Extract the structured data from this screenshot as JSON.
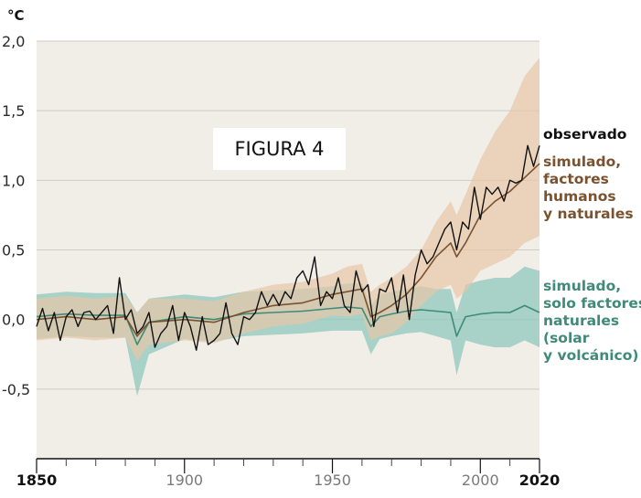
{
  "figure_label": "FIGURA 4",
  "colors": {
    "plot_background": "#f1eee8",
    "grid": "#cfcbc4",
    "observed": "#111111",
    "human_natural": "#7a5230",
    "human_natural_band": "#e7c8a7",
    "natural_only": "#3f8a79",
    "natural_only_band": "#8fc7bd"
  },
  "chart_data": {
    "type": "line",
    "unit_label": "°C",
    "xlabel": "",
    "ylabel": "",
    "xlim": [
      1850,
      2020
    ],
    "ylim": [
      -1.0,
      2.0
    ],
    "yticks": [
      {
        "value": 2.0,
        "label": "2,0"
      },
      {
        "value": 1.5,
        "label": "1,5"
      },
      {
        "value": 1.0,
        "label": "1,0"
      },
      {
        "value": 0.5,
        "label": "0,5"
      },
      {
        "value": 0.0,
        "label": "0,0"
      },
      {
        "value": -0.5,
        "label": "-0,5"
      }
    ],
    "xticks": [
      {
        "value": 1850,
        "label": "1850",
        "bold": true
      },
      {
        "value": 1900,
        "label": "1900",
        "bold": false
      },
      {
        "value": 1950,
        "label": "1950",
        "bold": false
      },
      {
        "value": 2000,
        "label": "2000",
        "bold": false
      },
      {
        "value": 2020,
        "label": "2020",
        "bold": true
      }
    ],
    "grid": true,
    "series": [
      {
        "name": "observado",
        "x": [
          1850,
          1852,
          1854,
          1856,
          1858,
          1860,
          1862,
          1864,
          1866,
          1868,
          1870,
          1872,
          1874,
          1876,
          1878,
          1880,
          1882,
          1884,
          1886,
          1888,
          1890,
          1892,
          1894,
          1896,
          1898,
          1900,
          1902,
          1904,
          1906,
          1908,
          1910,
          1912,
          1914,
          1916,
          1918,
          1920,
          1922,
          1924,
          1926,
          1928,
          1930,
          1932,
          1934,
          1936,
          1938,
          1940,
          1942,
          1944,
          1946,
          1948,
          1950,
          1952,
          1954,
          1956,
          1958,
          1960,
          1962,
          1964,
          1966,
          1968,
          1970,
          1972,
          1974,
          1976,
          1978,
          1980,
          1982,
          1984,
          1986,
          1988,
          1990,
          1992,
          1994,
          1996,
          1998,
          2000,
          2002,
          2004,
          2006,
          2008,
          2010,
          2012,
          2014,
          2016,
          2018,
          2020
        ],
        "values": [
          -0.05,
          0.08,
          -0.08,
          0.05,
          -0.15,
          0.02,
          0.07,
          -0.05,
          0.05,
          0.06,
          0.0,
          0.05,
          0.1,
          -0.1,
          0.3,
          0.0,
          0.07,
          -0.1,
          -0.05,
          0.05,
          -0.2,
          -0.1,
          -0.05,
          0.1,
          -0.15,
          0.05,
          -0.05,
          -0.22,
          0.02,
          -0.18,
          -0.15,
          -0.1,
          0.12,
          -0.1,
          -0.18,
          0.02,
          0.0,
          0.05,
          0.2,
          0.1,
          0.18,
          0.1,
          0.2,
          0.15,
          0.3,
          0.35,
          0.25,
          0.45,
          0.1,
          0.2,
          0.15,
          0.3,
          0.1,
          0.05,
          0.35,
          0.2,
          0.25,
          -0.05,
          0.22,
          0.2,
          0.3,
          0.05,
          0.32,
          0.0,
          0.32,
          0.5,
          0.4,
          0.45,
          0.55,
          0.65,
          0.7,
          0.5,
          0.7,
          0.65,
          0.95,
          0.72,
          0.95,
          0.9,
          0.95,
          0.85,
          1.0,
          0.98,
          1.0,
          1.25,
          1.1,
          1.25
        ]
      },
      {
        "name": "simulado, factores humanos y naturales",
        "x": [
          1850,
          1860,
          1870,
          1880,
          1884,
          1888,
          1900,
          1910,
          1920,
          1930,
          1940,
          1950,
          1955,
          1960,
          1963,
          1966,
          1970,
          1975,
          1980,
          1985,
          1990,
          1992,
          1995,
          2000,
          2005,
          2010,
          2015,
          2020
        ],
        "values": [
          0.0,
          0.02,
          0.0,
          0.02,
          -0.12,
          -0.02,
          0.0,
          -0.02,
          0.05,
          0.1,
          0.12,
          0.18,
          0.2,
          0.22,
          0.02,
          0.05,
          0.1,
          0.18,
          0.3,
          0.45,
          0.55,
          0.45,
          0.55,
          0.75,
          0.85,
          0.92,
          1.02,
          1.12
        ],
        "band_upper": [
          0.15,
          0.17,
          0.15,
          0.17,
          0.05,
          0.15,
          0.15,
          0.13,
          0.2,
          0.25,
          0.27,
          0.33,
          0.38,
          0.4,
          0.2,
          0.25,
          0.3,
          0.38,
          0.5,
          0.7,
          0.85,
          0.75,
          0.9,
          1.15,
          1.35,
          1.5,
          1.75,
          1.88
        ],
        "band_lower": [
          -0.15,
          -0.13,
          -0.15,
          -0.13,
          -0.3,
          -0.18,
          -0.15,
          -0.17,
          -0.1,
          -0.05,
          -0.03,
          0.03,
          0.02,
          0.04,
          -0.15,
          -0.12,
          -0.1,
          -0.02,
          0.1,
          0.2,
          0.25,
          0.15,
          0.2,
          0.35,
          0.4,
          0.45,
          0.55,
          0.6
        ]
      },
      {
        "name": "simulado, solo factores naturales (solar y volcánico)",
        "x": [
          1850,
          1860,
          1870,
          1880,
          1884,
          1888,
          1900,
          1910,
          1920,
          1930,
          1940,
          1950,
          1955,
          1960,
          1963,
          1966,
          1970,
          1975,
          1980,
          1985,
          1990,
          1992,
          1995,
          2000,
          2005,
          2010,
          2015,
          2020
        ],
        "values": [
          0.02,
          0.04,
          0.03,
          0.03,
          -0.18,
          -0.02,
          0.02,
          0.0,
          0.04,
          0.05,
          0.06,
          0.08,
          0.09,
          0.08,
          -0.05,
          0.02,
          0.04,
          0.06,
          0.07,
          0.06,
          0.05,
          -0.12,
          0.02,
          0.04,
          0.05,
          0.05,
          0.1,
          0.05
        ],
        "band_upper": [
          0.18,
          0.2,
          0.19,
          0.19,
          0.05,
          0.15,
          0.18,
          0.16,
          0.2,
          0.21,
          0.22,
          0.24,
          0.26,
          0.26,
          0.1,
          0.18,
          0.2,
          0.22,
          0.24,
          0.22,
          0.22,
          0.05,
          0.25,
          0.28,
          0.3,
          0.3,
          0.38,
          0.35
        ],
        "band_lower": [
          -0.14,
          -0.12,
          -0.13,
          -0.13,
          -0.55,
          -0.25,
          -0.14,
          -0.16,
          -0.12,
          -0.11,
          -0.1,
          -0.08,
          -0.08,
          -0.08,
          -0.25,
          -0.14,
          -0.12,
          -0.1,
          -0.09,
          -0.12,
          -0.15,
          -0.4,
          -0.15,
          -0.18,
          -0.2,
          -0.2,
          -0.15,
          -0.2
        ]
      }
    ],
    "legend_entries": [
      {
        "series": 0,
        "lines": [
          "observado"
        ]
      },
      {
        "series": 1,
        "lines": [
          "simulado,",
          "factores",
          "humanos",
          "y naturales"
        ]
      },
      {
        "series": 2,
        "lines": [
          "simulado,",
          "solo factores",
          "naturales",
          "(solar",
          "y volcánico)"
        ]
      }
    ]
  }
}
